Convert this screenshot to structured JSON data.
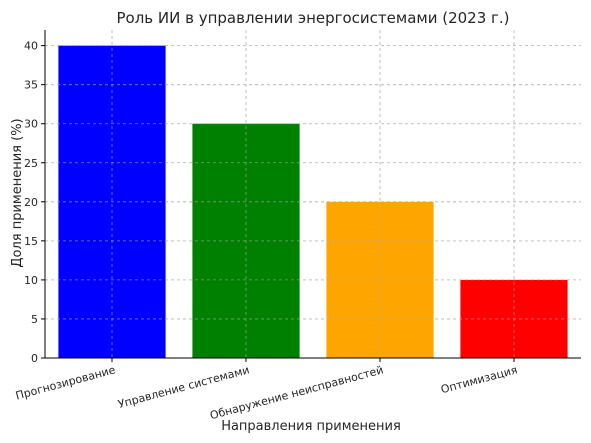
{
  "chart_data": {
    "type": "bar",
    "title": "Роль ИИ в управлении энергосистемами (2023 г.)",
    "xlabel": "Направления применения",
    "ylabel": "Доля применения (%)",
    "categories": [
      "Прогнозирование",
      "Управление системами",
      "Обнаружение неисправностей",
      "Оптимизация"
    ],
    "values": [
      40,
      30,
      20,
      10
    ],
    "colors": [
      "#0000ff",
      "#008000",
      "#ffa500",
      "#ff0000"
    ],
    "ylim": [
      0,
      42
    ],
    "yticks": [
      0,
      5,
      10,
      15,
      20,
      25,
      30,
      35,
      40
    ],
    "grid": true,
    "legend": "none"
  }
}
